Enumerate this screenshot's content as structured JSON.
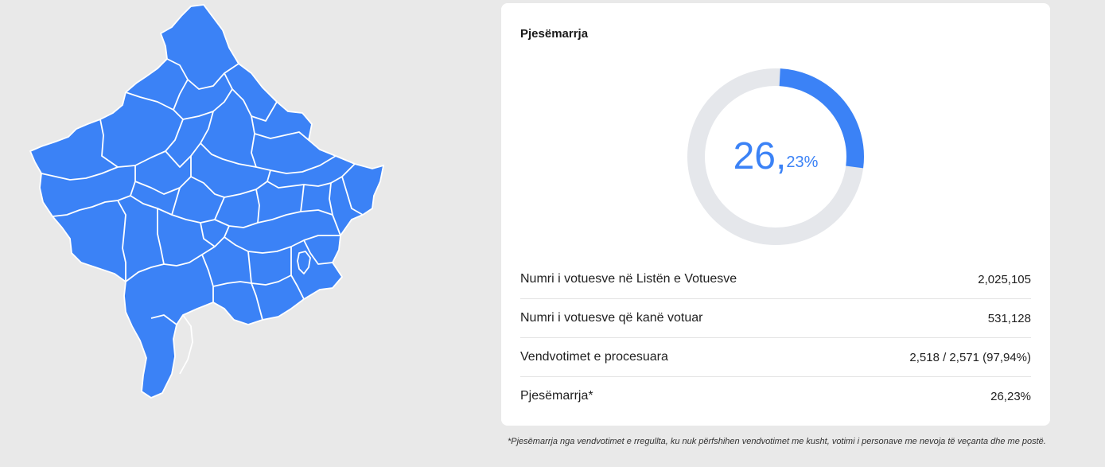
{
  "map": {
    "fill": "#3b82f6",
    "border": "#ffffff"
  },
  "turnout_card": {
    "title": "Pjesëmarrja",
    "donut": {
      "value_pct": 26.23,
      "integer_part": "26,",
      "decimal_part": "23%",
      "accent": "#3b82f6",
      "track": "#e5e7eb"
    },
    "stats": [
      {
        "label": "Numri i votuesve në Listën e Votuesve",
        "value": "2,025,105"
      },
      {
        "label": "Numri i votuesve që kanë votuar",
        "value": "531,128"
      },
      {
        "label": "Vendvotimet e procesuara",
        "value": "2,518 / 2,571 (97,94%)"
      },
      {
        "label": "Pjesëmarrja*",
        "value": "26,23%"
      }
    ]
  },
  "footnote": "*Pjesëmarrja nga vendvotimet e rregullta, ku nuk përfshihen vendvotimet me kusht, votimi i personave me nevoja të veçanta dhe me postë."
}
